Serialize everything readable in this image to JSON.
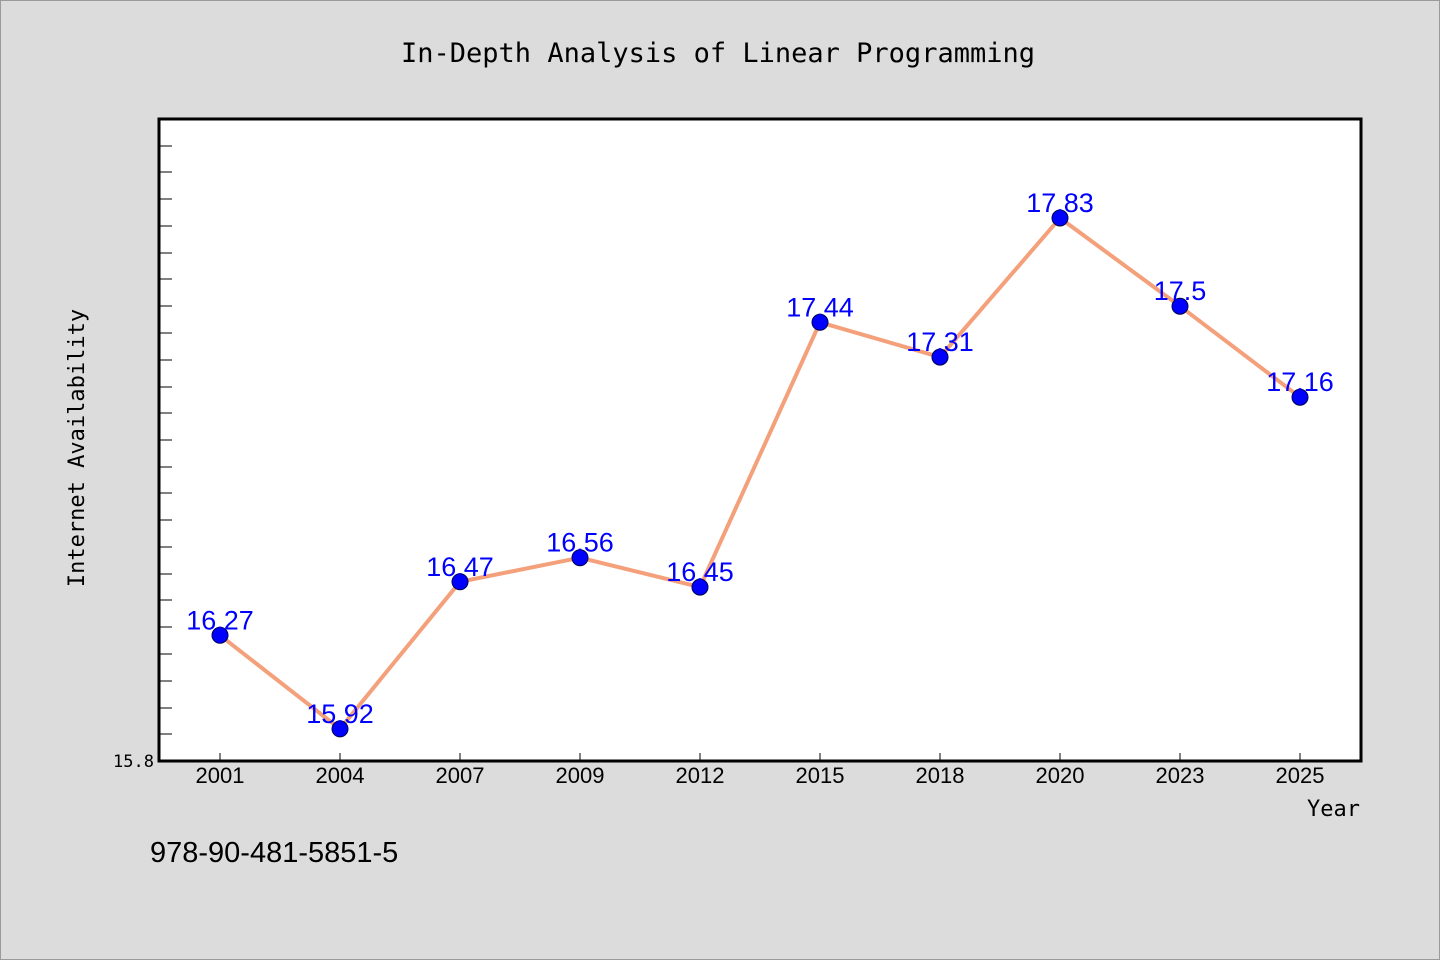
{
  "chart_data": {
    "type": "line",
    "title": "In-Depth Analysis of Linear Programming",
    "xlabel": "Year",
    "ylabel": "Internet Availability",
    "categories": [
      "2001",
      "2004",
      "2007",
      "2009",
      "2012",
      "2015",
      "2018",
      "2020",
      "2023",
      "2025"
    ],
    "series": [
      {
        "values": [
          16.27,
          15.92,
          16.47,
          16.56,
          16.45,
          17.44,
          17.31,
          17.83,
          17.5,
          17.16
        ]
      }
    ],
    "y_tick_labels": [
      "15.8"
    ],
    "ylim": [
      15.8,
      18.2
    ],
    "grid": false,
    "legend": "none",
    "colors": {
      "line": "#f4a07a",
      "marker": "#0000ff",
      "data_label": "#0000ff",
      "plot_background": "#ffffff",
      "figure_background": "#dcdcdc"
    }
  },
  "footer": {
    "isbn": "978-90-481-5851-5"
  }
}
